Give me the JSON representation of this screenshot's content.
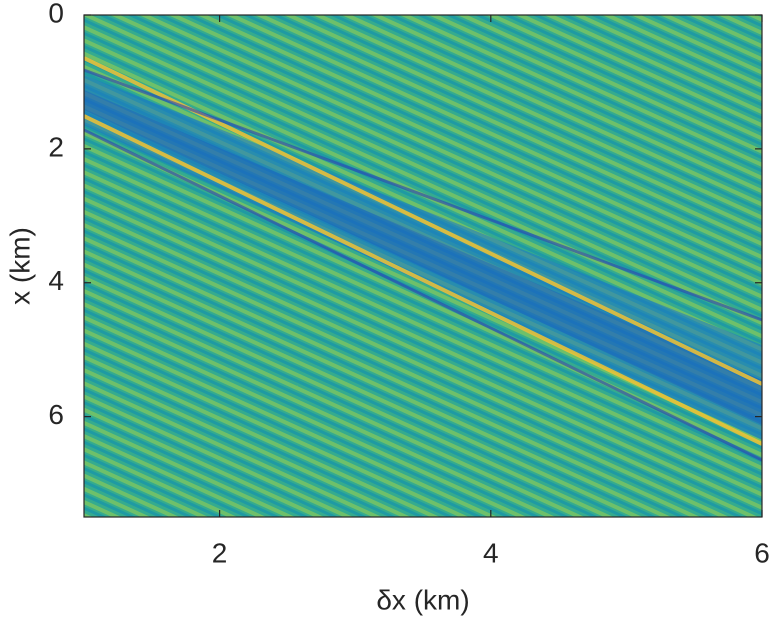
{
  "chart_data": {
    "type": "heatmap",
    "xlabel": "δx (km)",
    "ylabel": "x (km)",
    "xlim": [
      1,
      6
    ],
    "xticks": [
      2,
      4,
      6
    ],
    "ylim": [
      0,
      7.5
    ],
    "yticks": [
      0,
      2,
      4,
      6
    ],
    "yreversed": true,
    "grid": false
  }
}
